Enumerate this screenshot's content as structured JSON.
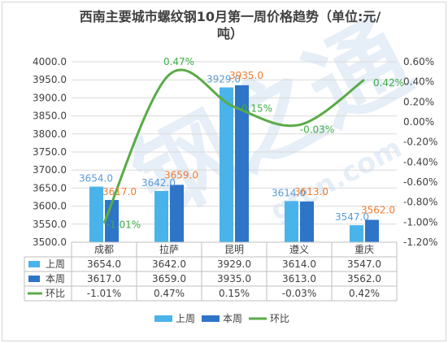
{
  "colors": {
    "s1": "#4ab3ea",
    "s2": "#2e75c8",
    "s3": "#5aab47",
    "grid": "#d9d9d9",
    "frame": "#bfbfbf"
  },
  "chart_data": {
    "type": "bar",
    "title_line1": "西南主要城市螺纹钢10月第一周价格趋势（单位:元/",
    "title_line2": "吨）",
    "categories": [
      "成都",
      "拉萨",
      "昆明",
      "遵义",
      "重庆"
    ],
    "series": [
      {
        "name": "上周",
        "values": [
          3654.0,
          3642.0,
          3929.0,
          3614.0,
          3547.0
        ],
        "axis": "left"
      },
      {
        "name": "本周",
        "values": [
          3617.0,
          3659.0,
          3935.0,
          3613.0,
          3562.0
        ],
        "axis": "left"
      },
      {
        "name": "环比",
        "type": "line",
        "values": [
          -1.01,
          0.47,
          0.15,
          -0.03,
          0.42
        ],
        "axis": "right",
        "unit": "%"
      }
    ],
    "left_axis": {
      "min": 3500,
      "max": 4000,
      "step": 50,
      "ticks": [
        "4000.0",
        "3950.0",
        "3900.0",
        "3850.0",
        "3800.0",
        "3750.0",
        "3700.0",
        "3650.0",
        "3600.0",
        "3550.0",
        "3500.0"
      ]
    },
    "right_axis": {
      "min": -1.2,
      "max": 0.6,
      "step": 0.2,
      "ticks": [
        "0.60%",
        "0.40%",
        "0.20%",
        "0.00%",
        "-0.20%",
        "-0.40%",
        "-0.60%",
        "-0.80%",
        "-1.00%",
        "-1.20%"
      ]
    },
    "data_labels": {
      "s1": [
        "3654.0",
        "3642.0",
        "3929.0",
        "3614.0",
        "3547.0"
      ],
      "s2": [
        "3617.0",
        "3659.0",
        "3935.0",
        "3613.0",
        "3562.0"
      ],
      "s3": [
        "-1.01%",
        "0.47%",
        "0.15%",
        "-0.03%",
        "0.42%"
      ]
    },
    "table": {
      "rows": [
        {
          "label": "上周",
          "cells": [
            "3654.0",
            "3642.0",
            "3929.0",
            "3614.0",
            "3547.0"
          ]
        },
        {
          "label": "本周",
          "cells": [
            "3617.0",
            "3659.0",
            "3935.0",
            "3613.0",
            "3562.0"
          ]
        },
        {
          "label": "环比",
          "cells": [
            "-1.01%",
            "0.47%",
            "0.15%",
            "-0.03%",
            "0.42%"
          ]
        }
      ]
    },
    "legend": [
      "上周",
      "本周",
      "环比"
    ],
    "legend_position": "bottom",
    "grid": true
  }
}
